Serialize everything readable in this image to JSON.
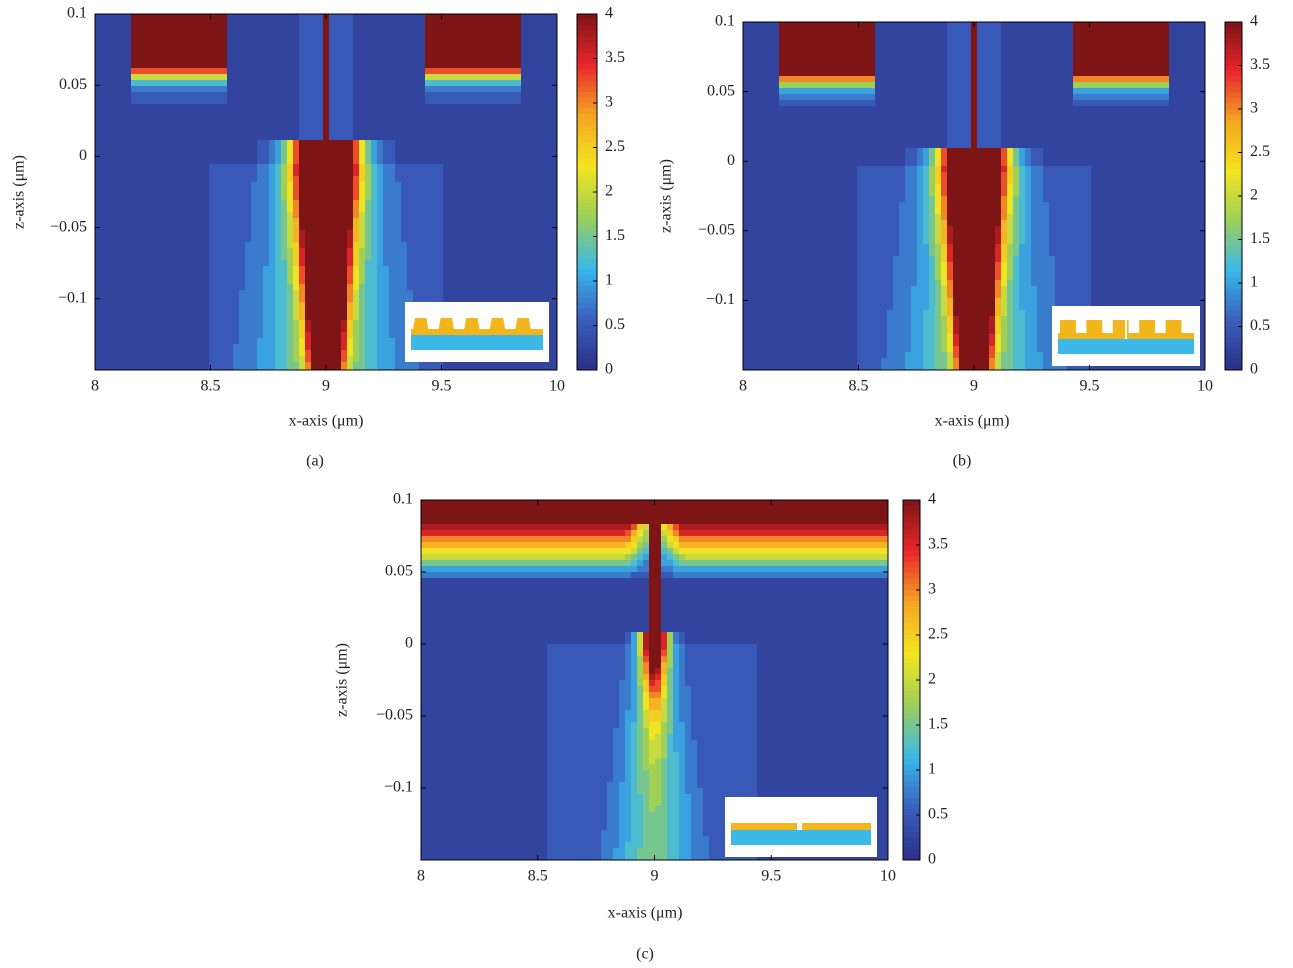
{
  "chart_data": [
    {
      "type": "contour",
      "label": "(a)",
      "xlabel": "x-axis (μm)",
      "ylabel": "z-axis (μm)",
      "xlim": [
        8,
        10
      ],
      "ylim": [
        -0.15,
        0.1
      ],
      "xticks": [
        8,
        8.5,
        9,
        9.5,
        10
      ],
      "yticks": [
        0.1,
        0.05,
        0,
        {
          "value": -0.05,
          "label": "−0.05"
        },
        {
          "value": -0.1,
          "label": "−0.1"
        }
      ],
      "clim": [
        0,
        4
      ],
      "cticks": [
        0,
        0.5,
        1,
        1.5,
        2,
        2.5,
        3,
        3.5,
        4
      ],
      "colormap": [
        "#2b2f84",
        "#3a5fbf",
        "#3ab8e8",
        "#9ccf5b",
        "#f3e51f",
        "#f5a623",
        "#e8262b",
        "#7d1416"
      ]
    },
    {
      "type": "contour",
      "label": "(b)",
      "xlabel": "x-axis (μm)",
      "ylabel": "z-axis (μm)",
      "xlim": [
        8,
        10
      ],
      "ylim": [
        -0.15,
        0.1
      ],
      "xticks": [
        8,
        8.5,
        9,
        9.5,
        10
      ],
      "yticks": [
        0.1,
        0.05,
        0,
        {
          "value": -0.05,
          "label": "−0.05"
        },
        {
          "value": -0.1,
          "label": "−0.1"
        }
      ],
      "clim": [
        0,
        4
      ],
      "cticks": [
        0,
        0.5,
        1,
        1.5,
        2,
        2.5,
        3,
        3.5,
        4
      ],
      "colormap": [
        "#2b2f84",
        "#3a5fbf",
        "#3ab8e8",
        "#9ccf5b",
        "#f3e51f",
        "#f5a623",
        "#e8262b",
        "#7d1416"
      ]
    },
    {
      "type": "contour",
      "label": "(c)",
      "xlabel": "x-axis (μm)",
      "ylabel": "z-axis (μm)",
      "xlim": [
        8,
        10
      ],
      "ylim": [
        -0.15,
        0.1
      ],
      "xticks": [
        8,
        8.5,
        9,
        9.5,
        10
      ],
      "yticks": [
        0.1,
        0.05,
        0,
        {
          "value": -0.05,
          "label": "−0.05"
        },
        {
          "value": -0.1,
          "label": "−0.1"
        }
      ],
      "clim": [
        0,
        4
      ],
      "cticks": [
        0,
        0.5,
        1,
        1.5,
        2,
        2.5,
        3,
        3.5,
        4
      ],
      "colormap": [
        "#2b2f84",
        "#3a5fbf",
        "#3ab8e8",
        "#9ccf5b",
        "#f3e51f",
        "#f5a623",
        "#e8262b",
        "#7d1416"
      ]
    }
  ]
}
